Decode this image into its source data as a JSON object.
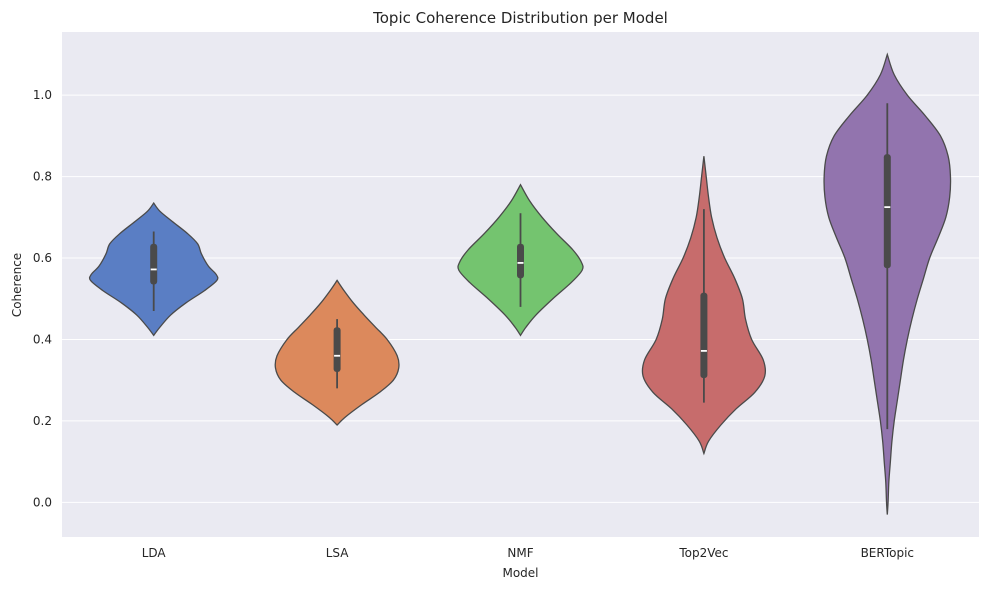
{
  "chart_data": {
    "type": "violin",
    "title": "Topic Coherence Distribution per Model",
    "xlabel": "Model",
    "ylabel": "Coherence",
    "ylim": [
      -0.085,
      1.155
    ],
    "yticks": [
      0.0,
      0.2,
      0.4,
      0.6,
      0.8,
      1.0
    ],
    "ytick_labels": [
      "0.0",
      "0.2",
      "0.4",
      "0.6",
      "0.8",
      "1.0"
    ],
    "grid": true,
    "categories": [
      "LDA",
      "LSA",
      "NMF",
      "Top2Vec",
      "BERTopic"
    ],
    "series": [
      {
        "name": "LDA",
        "color": "#5a7ec4",
        "kde_min": 0.41,
        "kde_max": 0.735,
        "whisker_low": 0.47,
        "whisker_high": 0.665,
        "q1": 0.535,
        "median": 0.572,
        "q3": 0.635,
        "profile": [
          [
            0.41,
            0.0
          ],
          [
            0.43,
            0.08
          ],
          [
            0.46,
            0.22
          ],
          [
            0.49,
            0.42
          ],
          [
            0.52,
            0.66
          ],
          [
            0.545,
            0.82
          ],
          [
            0.56,
            0.81
          ],
          [
            0.58,
            0.71
          ],
          [
            0.61,
            0.62
          ],
          [
            0.635,
            0.57
          ],
          [
            0.66,
            0.44
          ],
          [
            0.69,
            0.24
          ],
          [
            0.715,
            0.08
          ],
          [
            0.735,
            0.0
          ]
        ]
      },
      {
        "name": "LSA",
        "color": "#dc895c",
        "kde_min": 0.19,
        "kde_max": 0.545,
        "whisker_low": 0.28,
        "whisker_high": 0.45,
        "q1": 0.32,
        "median": 0.36,
        "q3": 0.43,
        "profile": [
          [
            0.19,
            0.0
          ],
          [
            0.21,
            0.11
          ],
          [
            0.24,
            0.32
          ],
          [
            0.27,
            0.55
          ],
          [
            0.3,
            0.73
          ],
          [
            0.33,
            0.8
          ],
          [
            0.36,
            0.78
          ],
          [
            0.4,
            0.65
          ],
          [
            0.43,
            0.5
          ],
          [
            0.46,
            0.35
          ],
          [
            0.49,
            0.21
          ],
          [
            0.52,
            0.09
          ],
          [
            0.545,
            0.0
          ]
        ]
      },
      {
        "name": "NMF",
        "color": "#74c46f",
        "kde_min": 0.41,
        "kde_max": 0.78,
        "whisker_low": 0.48,
        "whisker_high": 0.71,
        "q1": 0.55,
        "median": 0.588,
        "q3": 0.635,
        "profile": [
          [
            0.41,
            0.0
          ],
          [
            0.43,
            0.07
          ],
          [
            0.46,
            0.2
          ],
          [
            0.5,
            0.42
          ],
          [
            0.54,
            0.66
          ],
          [
            0.57,
            0.8
          ],
          [
            0.59,
            0.79
          ],
          [
            0.62,
            0.68
          ],
          [
            0.66,
            0.47
          ],
          [
            0.7,
            0.28
          ],
          [
            0.74,
            0.12
          ],
          [
            0.78,
            0.0
          ]
        ]
      },
      {
        "name": "Top2Vec",
        "color": "#c76c6c",
        "kde_min": 0.12,
        "kde_max": 0.85,
        "whisker_low": 0.245,
        "whisker_high": 0.72,
        "q1": 0.305,
        "median": 0.372,
        "q3": 0.515,
        "profile": [
          [
            0.12,
            0.0
          ],
          [
            0.15,
            0.06
          ],
          [
            0.19,
            0.22
          ],
          [
            0.23,
            0.42
          ],
          [
            0.27,
            0.66
          ],
          [
            0.31,
            0.79
          ],
          [
            0.35,
            0.77
          ],
          [
            0.4,
            0.62
          ],
          [
            0.45,
            0.54
          ],
          [
            0.5,
            0.5
          ],
          [
            0.55,
            0.4
          ],
          [
            0.6,
            0.27
          ],
          [
            0.65,
            0.17
          ],
          [
            0.7,
            0.1
          ],
          [
            0.75,
            0.06
          ],
          [
            0.8,
            0.03
          ],
          [
            0.85,
            0.0
          ]
        ]
      },
      {
        "name": "BERTopic",
        "color": "#9274ae",
        "kde_min": -0.03,
        "kde_max": 1.1,
        "whisker_low": 0.18,
        "whisker_high": 0.98,
        "q1": 0.575,
        "median": 0.725,
        "q3": 0.855,
        "profile": [
          [
            -0.03,
            0.0
          ],
          [
            0.0,
            0.01
          ],
          [
            0.05,
            0.02
          ],
          [
            0.1,
            0.04
          ],
          [
            0.15,
            0.06
          ],
          [
            0.2,
            0.09
          ],
          [
            0.25,
            0.13
          ],
          [
            0.3,
            0.17
          ],
          [
            0.35,
            0.21
          ],
          [
            0.4,
            0.26
          ],
          [
            0.45,
            0.32
          ],
          [
            0.5,
            0.39
          ],
          [
            0.55,
            0.47
          ],
          [
            0.6,
            0.55
          ],
          [
            0.65,
            0.66
          ],
          [
            0.7,
            0.76
          ],
          [
            0.75,
            0.81
          ],
          [
            0.8,
            0.82
          ],
          [
            0.85,
            0.79
          ],
          [
            0.9,
            0.69
          ],
          [
            0.95,
            0.49
          ],
          [
            1.0,
            0.26
          ],
          [
            1.05,
            0.09
          ],
          [
            1.1,
            0.0
          ]
        ]
      }
    ]
  }
}
